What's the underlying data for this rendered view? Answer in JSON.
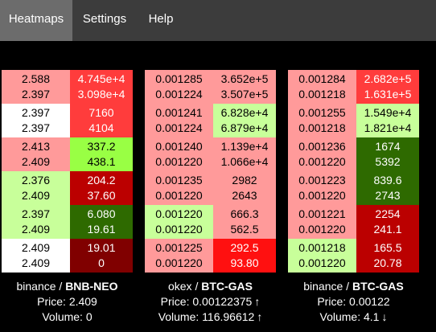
{
  "nav": {
    "items": [
      {
        "label": "Heatmaps",
        "active": true
      },
      {
        "label": "Settings",
        "active": false
      },
      {
        "label": "Help",
        "active": false
      }
    ]
  },
  "colors": {
    "nav_bg": "#3c3c3c",
    "nav_active_bg": "#6c6c6c",
    "light_red": "#ff9a9a",
    "red": "#ff3c3c",
    "bright_red": "#ff1010",
    "dark_red": "#bb0000",
    "darker_red": "#800000",
    "light_green": "#c8ff9a",
    "green": "#99ff44",
    "dark_green": "#2e6a00",
    "white": "#ffffff"
  },
  "panels": [
    {
      "exchange": "binance",
      "separator": " / ",
      "pair": "BNB-NEO",
      "price_label": "Price: ",
      "price": "2.409",
      "price_arrow": "",
      "volume_label": "Volume: ",
      "volume": "0",
      "volume_arrow": "",
      "rows": [
        {
          "left": [
            "2.588",
            "2.397"
          ],
          "left_color": "light_red",
          "right": [
            "4.745e+4",
            "3.098e+4"
          ],
          "right_color": "red"
        },
        {
          "left": [
            "2.397",
            "2.397"
          ],
          "left_color": "white",
          "right": [
            "7160",
            "4104"
          ],
          "right_color": "red"
        },
        {
          "left": [
            "2.413",
            "2.409"
          ],
          "left_color": "light_red",
          "right": [
            "337.2",
            "438.1"
          ],
          "right_color": "green"
        },
        {
          "left": [
            "2.376",
            "2.409"
          ],
          "left_color": "light_green",
          "right": [
            "204.2",
            "37.60"
          ],
          "right_color": "dark_red"
        },
        {
          "left": [
            "2.397",
            "2.409"
          ],
          "left_color": "light_green",
          "right": [
            "6.080",
            "19.61"
          ],
          "right_color": "dark_green"
        },
        {
          "left": [
            "2.409",
            "2.409"
          ],
          "left_color": "white",
          "right": [
            "19.01",
            "0"
          ],
          "right_color": "darker_red"
        }
      ]
    },
    {
      "exchange": "okex",
      "separator": " / ",
      "pair": "BTC-GAS",
      "price_label": "Price: ",
      "price": "0.00122375",
      "price_arrow": "arrow-up-icon",
      "volume_label": "Volume: ",
      "volume": "116.96612",
      "volume_arrow": "arrow-up-icon",
      "rows": [
        {
          "left": [
            "0.001285",
            "0.001224"
          ],
          "left_color": "light_red",
          "right": [
            "3.652e+5",
            "3.507e+5"
          ],
          "right_color": "light_red"
        },
        {
          "left": [
            "0.001241",
            "0.001224"
          ],
          "left_color": "light_red",
          "right": [
            "6.828e+4",
            "6.879e+4"
          ],
          "right_color": "light_green"
        },
        {
          "left": [
            "0.001240",
            "0.001220"
          ],
          "left_color": "light_red",
          "right": [
            "1.139e+4",
            "1.066e+4"
          ],
          "right_color": "light_red"
        },
        {
          "left": [
            "0.001235",
            "0.001220"
          ],
          "left_color": "light_red",
          "right": [
            "2982",
            "2643"
          ],
          "right_color": "light_red"
        },
        {
          "left": [
            "0.001220",
            "0.001220"
          ],
          "left_color": "light_green",
          "right": [
            "666.3",
            "562.5"
          ],
          "right_color": "light_red"
        },
        {
          "left": [
            "0.001225",
            "0.001220"
          ],
          "left_color": "light_red",
          "right": [
            "292.5",
            "93.80"
          ],
          "right_color": "bright_red"
        }
      ]
    },
    {
      "exchange": "binance",
      "separator": " / ",
      "pair": "BTC-GAS",
      "price_label": "Price: ",
      "price": "0.00122",
      "price_arrow": "",
      "volume_label": "Volume: ",
      "volume": "4.1",
      "volume_arrow": "arrow-down-icon",
      "rows": [
        {
          "left": [
            "0.001284",
            "0.001218"
          ],
          "left_color": "light_red",
          "right": [
            "2.682e+5",
            "1.631e+5"
          ],
          "right_color": "red"
        },
        {
          "left": [
            "0.001255",
            "0.001218"
          ],
          "left_color": "light_red",
          "right": [
            "1.549e+4",
            "1.821e+4"
          ],
          "right_color": "light_green"
        },
        {
          "left": [
            "0.001236",
            "0.001220"
          ],
          "left_color": "light_red",
          "right": [
            "1674",
            "5392"
          ],
          "right_color": "dark_green"
        },
        {
          "left": [
            "0.001223",
            "0.001220"
          ],
          "left_color": "light_red",
          "right": [
            "839.6",
            "2743"
          ],
          "right_color": "dark_green"
        },
        {
          "left": [
            "0.001221",
            "0.001220"
          ],
          "left_color": "light_red",
          "right": [
            "2254",
            "241.1"
          ],
          "right_color": "dark_red"
        },
        {
          "left": [
            "0.001218",
            "0.001220"
          ],
          "left_color": "light_green",
          "right": [
            "165.5",
            "20.78"
          ],
          "right_color": "dark_red"
        }
      ]
    }
  ]
}
